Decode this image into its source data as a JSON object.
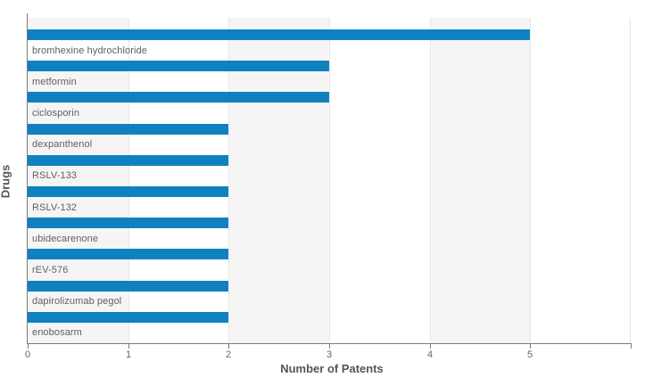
{
  "chart_data": {
    "type": "bar",
    "orientation": "horizontal",
    "title": "",
    "xlabel": "Number of Patents",
    "ylabel": "Drugs",
    "categories": [
      "bromhexine hydrochloride",
      "metformin",
      "ciclosporin",
      "dexpanthenol",
      "RSLV-133",
      "RSLV-132",
      "ubidecarenone",
      "rEV-576",
      "dapirolizumab pegol",
      "enobosarm"
    ],
    "values": [
      5,
      3,
      3,
      2,
      2,
      2,
      2,
      2,
      2,
      2
    ],
    "x_ticks": [
      "0",
      "1",
      "2",
      "3",
      "4",
      "5"
    ],
    "xlim": [
      0,
      6
    ],
    "legend": "none",
    "grid": "alternating-vertical-bands",
    "colors": {
      "bar": "#0f81c1",
      "band_gray": "#f5f5f5",
      "plot_white": "#ffffff",
      "label_text": "#606060",
      "tick_text": "#666666",
      "axis_title_text": "#555555",
      "axis_line": "#7a7a7a",
      "gridline": "#e7e7e7"
    }
  }
}
